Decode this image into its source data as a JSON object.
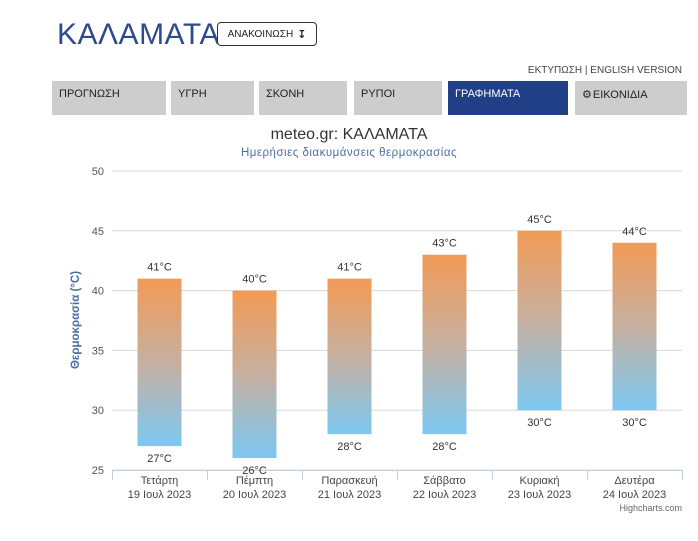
{
  "header": {
    "city": "ΚΑΛΑΜΑΤΑ",
    "announce_label": "ΑΝΑΚΟΙΝΩΣΗ",
    "announce_icon": "arrow-down-icon"
  },
  "top_links": {
    "print": "ΕΚΤΥΠΩΣΗ",
    "separator": "|",
    "english": "ENGLISH VERSION"
  },
  "tabs": [
    {
      "label": "ΠΡΟΓΝΩΣΗ",
      "active": false
    },
    {
      "label": "ΥΓΡΗ",
      "active": false
    },
    {
      "label": "ΣΚΟΝΗ",
      "active": false
    },
    {
      "label": "ΡΥΠΟΙ",
      "active": false
    },
    {
      "label": "ΓΡΑΦΗΜΑΤΑ",
      "active": true
    },
    {
      "label": "ΕΙΚΟΝΙΔΙΑ",
      "active": false,
      "icon": "gear-icon"
    }
  ],
  "colors": {
    "title": "#2e4a8a",
    "active_tab": "#203f87",
    "tab": "#cdcdcd",
    "bar_top": "#f29a55",
    "bar_bottom": "#7cc8f2"
  },
  "credits": "Highcharts.com",
  "chart_data": {
    "type": "columnrange",
    "title": "meteo.gr: ΚΑΛΑΜΑΤΑ",
    "subtitle": "Ημερήσιες διακυμάνσεις θερμοκρασίας",
    "ylabel": "Θερμοκρασία (°C)",
    "ylim": [
      25,
      50
    ],
    "yticks": [
      25,
      30,
      35,
      40,
      45,
      50
    ],
    "grid": true,
    "categories": [
      [
        "Τετάρτη",
        "19 Ιουλ 2023"
      ],
      [
        "Πέμπτη",
        "20 Ιουλ 2023"
      ],
      [
        "Παρασκευή",
        "21 Ιουλ 2023"
      ],
      [
        "Σάββατο",
        "22 Ιουλ 2023"
      ],
      [
        "Κυριακή",
        "23 Ιουλ 2023"
      ],
      [
        "Δευτέρα",
        "24 Ιουλ 2023"
      ]
    ],
    "low": [
      27,
      26,
      28,
      28,
      30,
      30
    ],
    "high": [
      41,
      40,
      41,
      43,
      45,
      44
    ],
    "unit": "°C"
  }
}
